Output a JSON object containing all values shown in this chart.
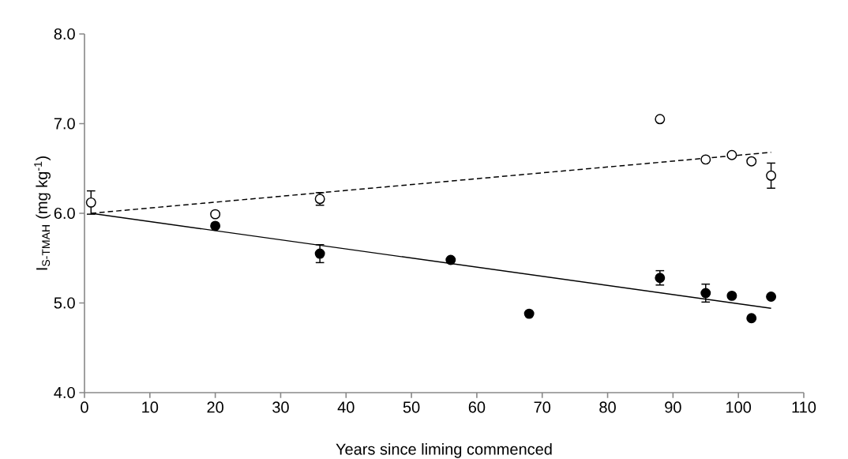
{
  "chart_data": {
    "type": "scatter",
    "xlabel": "Years since liming commenced",
    "ylabel": "I$_{S-TMAH}$ (mg kg$^{-1}$)",
    "xlim": [
      0,
      110
    ],
    "xticks": [
      0,
      10,
      20,
      30,
      40,
      50,
      60,
      70,
      80,
      90,
      100,
      110
    ],
    "ylim": [
      4,
      8
    ],
    "yticks": [
      {
        "value": 4,
        "label": "4.0"
      },
      {
        "value": 5,
        "label": "5.0"
      },
      {
        "value": 6,
        "label": "6.0"
      },
      {
        "value": 7,
        "label": "7.0"
      },
      {
        "value": 8,
        "label": "8.0"
      }
    ],
    "grid": false,
    "legend": false,
    "series": [
      {
        "color": "#ffffff",
        "marker": "circle",
        "x": [
          1,
          20,
          36,
          88,
          95,
          99,
          102,
          105
        ],
        "values": [
          6.12,
          5.99,
          6.16,
          7.05,
          6.6,
          6.65,
          6.58,
          6.42
        ],
        "errors": [
          0.13,
          null,
          0.07,
          null,
          null,
          null,
          null,
          0.14
        ]
      },
      {
        "color": "#000000",
        "marker": "circle",
        "x": [
          20,
          36,
          56,
          68,
          88,
          95,
          99,
          102,
          105
        ],
        "values": [
          5.86,
          5.55,
          5.48,
          4.88,
          5.28,
          5.11,
          5.08,
          4.83,
          5.07
        ],
        "errors": [
          null,
          0.1,
          null,
          null,
          0.08,
          0.1,
          null,
          null,
          null
        ]
      },
      {
        "type": "line",
        "color": "#000000",
        "marker": "none",
        "line_style": "dashed",
        "x": [
          1,
          105
        ],
        "values": [
          6.0,
          6.68
        ]
      },
      {
        "type": "line",
        "color": "#000000",
        "marker": "none",
        "line_style": "solid",
        "x": [
          1,
          105
        ],
        "values": [
          6.0,
          4.94
        ]
      }
    ]
  }
}
